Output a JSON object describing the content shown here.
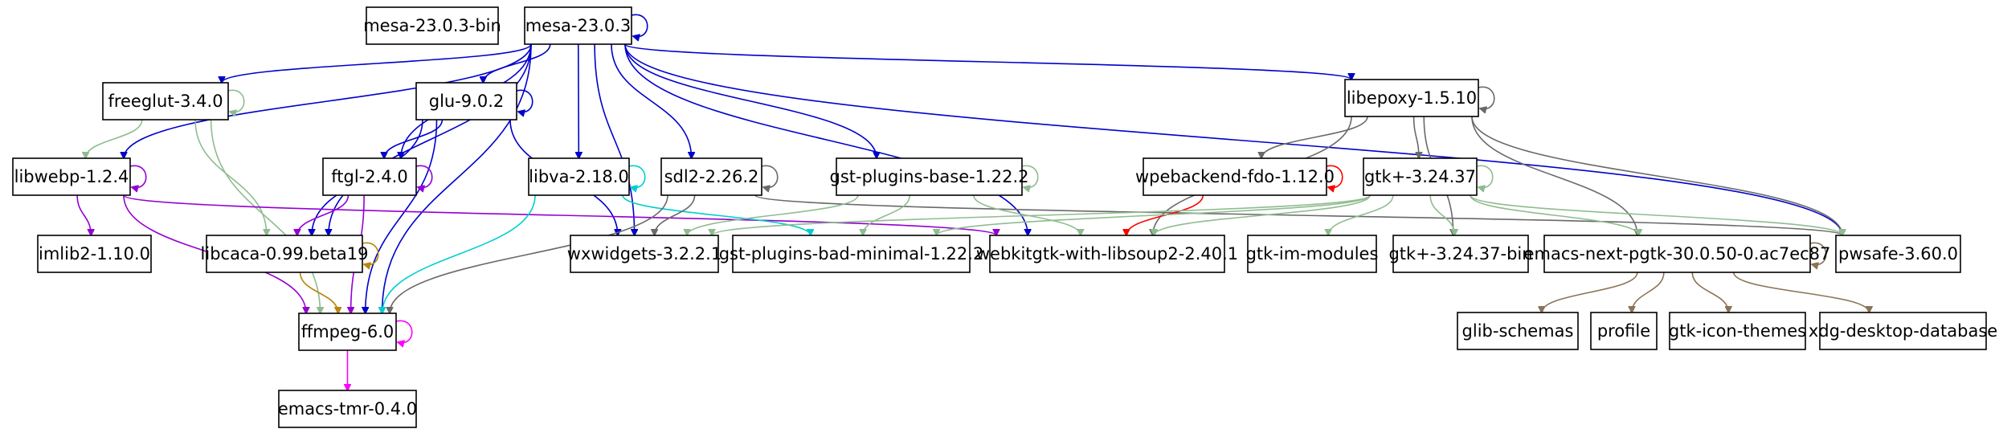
{
  "graph": {
    "nodes": [
      {
        "id": "mesa_bin",
        "label": "mesa-23.0.3-bin"
      },
      {
        "id": "mesa",
        "label": "mesa-23.0.3"
      },
      {
        "id": "freeglut",
        "label": "freeglut-3.4.0"
      },
      {
        "id": "glu",
        "label": "glu-9.0.2"
      },
      {
        "id": "libepoxy",
        "label": "libepoxy-1.5.10"
      },
      {
        "id": "libwebp",
        "label": "libwebp-1.2.4"
      },
      {
        "id": "ftgl",
        "label": "ftgl-2.4.0"
      },
      {
        "id": "libva",
        "label": "libva-2.18.0"
      },
      {
        "id": "sdl2",
        "label": "sdl2-2.26.2"
      },
      {
        "id": "gst_base",
        "label": "gst-plugins-base-1.22.2"
      },
      {
        "id": "wpebackend",
        "label": "wpebackend-fdo-1.12.0"
      },
      {
        "id": "gtk3",
        "label": "gtk+-3.24.37"
      },
      {
        "id": "imlib2",
        "label": "imlib2-1.10.0"
      },
      {
        "id": "libcaca",
        "label": "libcaca-0.99.beta19"
      },
      {
        "id": "wxwidgets",
        "label": "wxwidgets-3.2.2.1"
      },
      {
        "id": "gst_bad",
        "label": "gst-plugins-bad-minimal-1.22.2"
      },
      {
        "id": "webkitgtk",
        "label": "webkitgtk-with-libsoup2-2.40.1"
      },
      {
        "id": "gtk_im",
        "label": "gtk-im-modules"
      },
      {
        "id": "gtk3_bin",
        "label": "gtk+-3.24.37-bin"
      },
      {
        "id": "emacs_pgtk",
        "label": "emacs-next-pgtk-30.0.50-0.ac7ec87"
      },
      {
        "id": "pwsafe",
        "label": "pwsafe-3.60.0"
      },
      {
        "id": "ffmpeg",
        "label": "ffmpeg-6.0"
      },
      {
        "id": "glib_schemas",
        "label": "glib-schemas"
      },
      {
        "id": "profile",
        "label": "profile"
      },
      {
        "id": "gtk_icon",
        "label": "gtk-icon-themes"
      },
      {
        "id": "xdg_desktop",
        "label": "xdg-desktop-database"
      },
      {
        "id": "emacs_tmr",
        "label": "emacs-tmr-0.4.0"
      }
    ],
    "edges": [
      {
        "from": "mesa",
        "to": "mesa",
        "color": "#0000cc"
      },
      {
        "from": "mesa",
        "to": "freeglut",
        "color": "#0000cc"
      },
      {
        "from": "mesa",
        "to": "glu",
        "color": "#0000cc"
      },
      {
        "from": "mesa",
        "to": "libwebp",
        "color": "#0000cc"
      },
      {
        "from": "mesa",
        "to": "ftgl",
        "color": "#0000cc"
      },
      {
        "from": "mesa",
        "to": "libva",
        "color": "#0000cc"
      },
      {
        "from": "mesa",
        "to": "sdl2",
        "color": "#0000cc"
      },
      {
        "from": "mesa",
        "to": "gst_base",
        "color": "#0000cc"
      },
      {
        "from": "mesa",
        "to": "libepoxy",
        "color": "#0000cc"
      },
      {
        "from": "mesa",
        "to": "libcaca",
        "color": "#0000cc"
      },
      {
        "from": "mesa",
        "to": "wxwidgets",
        "color": "#0000cc"
      },
      {
        "from": "mesa",
        "to": "webkitgtk",
        "color": "#0000cc"
      },
      {
        "from": "mesa",
        "to": "pwsafe",
        "color": "#0000cc"
      },
      {
        "from": "mesa",
        "to": "ffmpeg",
        "color": "#0000cc"
      },
      {
        "from": "freeglut",
        "to": "freeglut",
        "color": "#8fbc8f"
      },
      {
        "from": "freeglut",
        "to": "libwebp",
        "color": "#8fbc8f"
      },
      {
        "from": "freeglut",
        "to": "libcaca",
        "color": "#8fbc8f"
      },
      {
        "from": "freeglut",
        "to": "ffmpeg",
        "color": "#8fbc8f"
      },
      {
        "from": "glu",
        "to": "glu",
        "color": "#0000cc"
      },
      {
        "from": "glu",
        "to": "ftgl",
        "color": "#0000cc"
      },
      {
        "from": "glu",
        "to": "libcaca",
        "color": "#0000cc"
      },
      {
        "from": "glu",
        "to": "wxwidgets",
        "color": "#0000cc"
      },
      {
        "from": "glu",
        "to": "ffmpeg",
        "color": "#0000cc"
      },
      {
        "from": "libwebp",
        "to": "libwebp",
        "color": "#9400d3"
      },
      {
        "from": "libwebp",
        "to": "imlib2",
        "color": "#9400d3"
      },
      {
        "from": "libwebp",
        "to": "ffmpeg",
        "color": "#9400d3"
      },
      {
        "from": "libwebp",
        "to": "webkitgtk",
        "color": "#9400d3"
      },
      {
        "from": "ftgl",
        "to": "ftgl",
        "color": "#9400d3"
      },
      {
        "from": "ftgl",
        "to": "libcaca",
        "color": "#9400d3"
      },
      {
        "from": "ftgl",
        "to": "ffmpeg",
        "color": "#9400d3"
      },
      {
        "from": "libva",
        "to": "libva",
        "color": "#00ced1"
      },
      {
        "from": "libva",
        "to": "ffmpeg",
        "color": "#00ced1"
      },
      {
        "from": "libva",
        "to": "gst_bad",
        "color": "#00ced1"
      },
      {
        "from": "sdl2",
        "to": "sdl2",
        "color": "#696969"
      },
      {
        "from": "sdl2",
        "to": "wxwidgets",
        "color": "#696969"
      },
      {
        "from": "sdl2",
        "to": "ffmpeg",
        "color": "#696969"
      },
      {
        "from": "sdl2",
        "to": "pwsafe",
        "color": "#696969"
      },
      {
        "from": "gst_base",
        "to": "gst_base",
        "color": "#8fbc8f"
      },
      {
        "from": "gst_base",
        "to": "wxwidgets",
        "color": "#8fbc8f"
      },
      {
        "from": "gst_base",
        "to": "gst_bad",
        "color": "#8fbc8f"
      },
      {
        "from": "gst_base",
        "to": "webkitgtk",
        "color": "#8fbc8f"
      },
      {
        "from": "libepoxy",
        "to": "libepoxy",
        "color": "#696969"
      },
      {
        "from": "libepoxy",
        "to": "wpebackend",
        "color": "#696969"
      },
      {
        "from": "libepoxy",
        "to": "gtk3",
        "color": "#696969"
      },
      {
        "from": "libepoxy",
        "to": "webkitgtk",
        "color": "#696969"
      },
      {
        "from": "libepoxy",
        "to": "gtk3_bin",
        "color": "#696969"
      },
      {
        "from": "libepoxy",
        "to": "emacs_pgtk",
        "color": "#696969"
      },
      {
        "from": "libepoxy",
        "to": "pwsafe",
        "color": "#696969"
      },
      {
        "from": "wpebackend",
        "to": "wpebackend",
        "color": "#ff0000"
      },
      {
        "from": "wpebackend",
        "to": "webkitgtk",
        "color": "#ff0000"
      },
      {
        "from": "gtk3",
        "to": "gtk3",
        "color": "#8fbc8f"
      },
      {
        "from": "gtk3",
        "to": "gtk_im",
        "color": "#8fbc8f"
      },
      {
        "from": "gtk3",
        "to": "gtk3_bin",
        "color": "#8fbc8f"
      },
      {
        "from": "gtk3",
        "to": "emacs_pgtk",
        "color": "#8fbc8f"
      },
      {
        "from": "gtk3",
        "to": "pwsafe",
        "color": "#8fbc8f"
      },
      {
        "from": "gtk3",
        "to": "webkitgtk",
        "color": "#8fbc8f"
      },
      {
        "from": "gtk3",
        "to": "wxwidgets",
        "color": "#8fbc8f"
      },
      {
        "from": "gtk3",
        "to": "gst_bad",
        "color": "#8fbc8f"
      },
      {
        "from": "libcaca",
        "to": "libcaca",
        "color": "#b8860b"
      },
      {
        "from": "libcaca",
        "to": "ffmpeg",
        "color": "#b8860b"
      },
      {
        "from": "emacs_pgtk",
        "to": "emacs_pgtk",
        "color": "#8b7355"
      },
      {
        "from": "emacs_pgtk",
        "to": "glib_schemas",
        "color": "#8b7355"
      },
      {
        "from": "emacs_pgtk",
        "to": "profile",
        "color": "#8b7355"
      },
      {
        "from": "emacs_pgtk",
        "to": "gtk_icon",
        "color": "#8b7355"
      },
      {
        "from": "emacs_pgtk",
        "to": "xdg_desktop",
        "color": "#8b7355"
      },
      {
        "from": "ffmpeg",
        "to": "ffmpeg",
        "color": "#ff00ff"
      },
      {
        "from": "ffmpeg",
        "to": "emacs_tmr",
        "color": "#ff00ff"
      }
    ]
  }
}
